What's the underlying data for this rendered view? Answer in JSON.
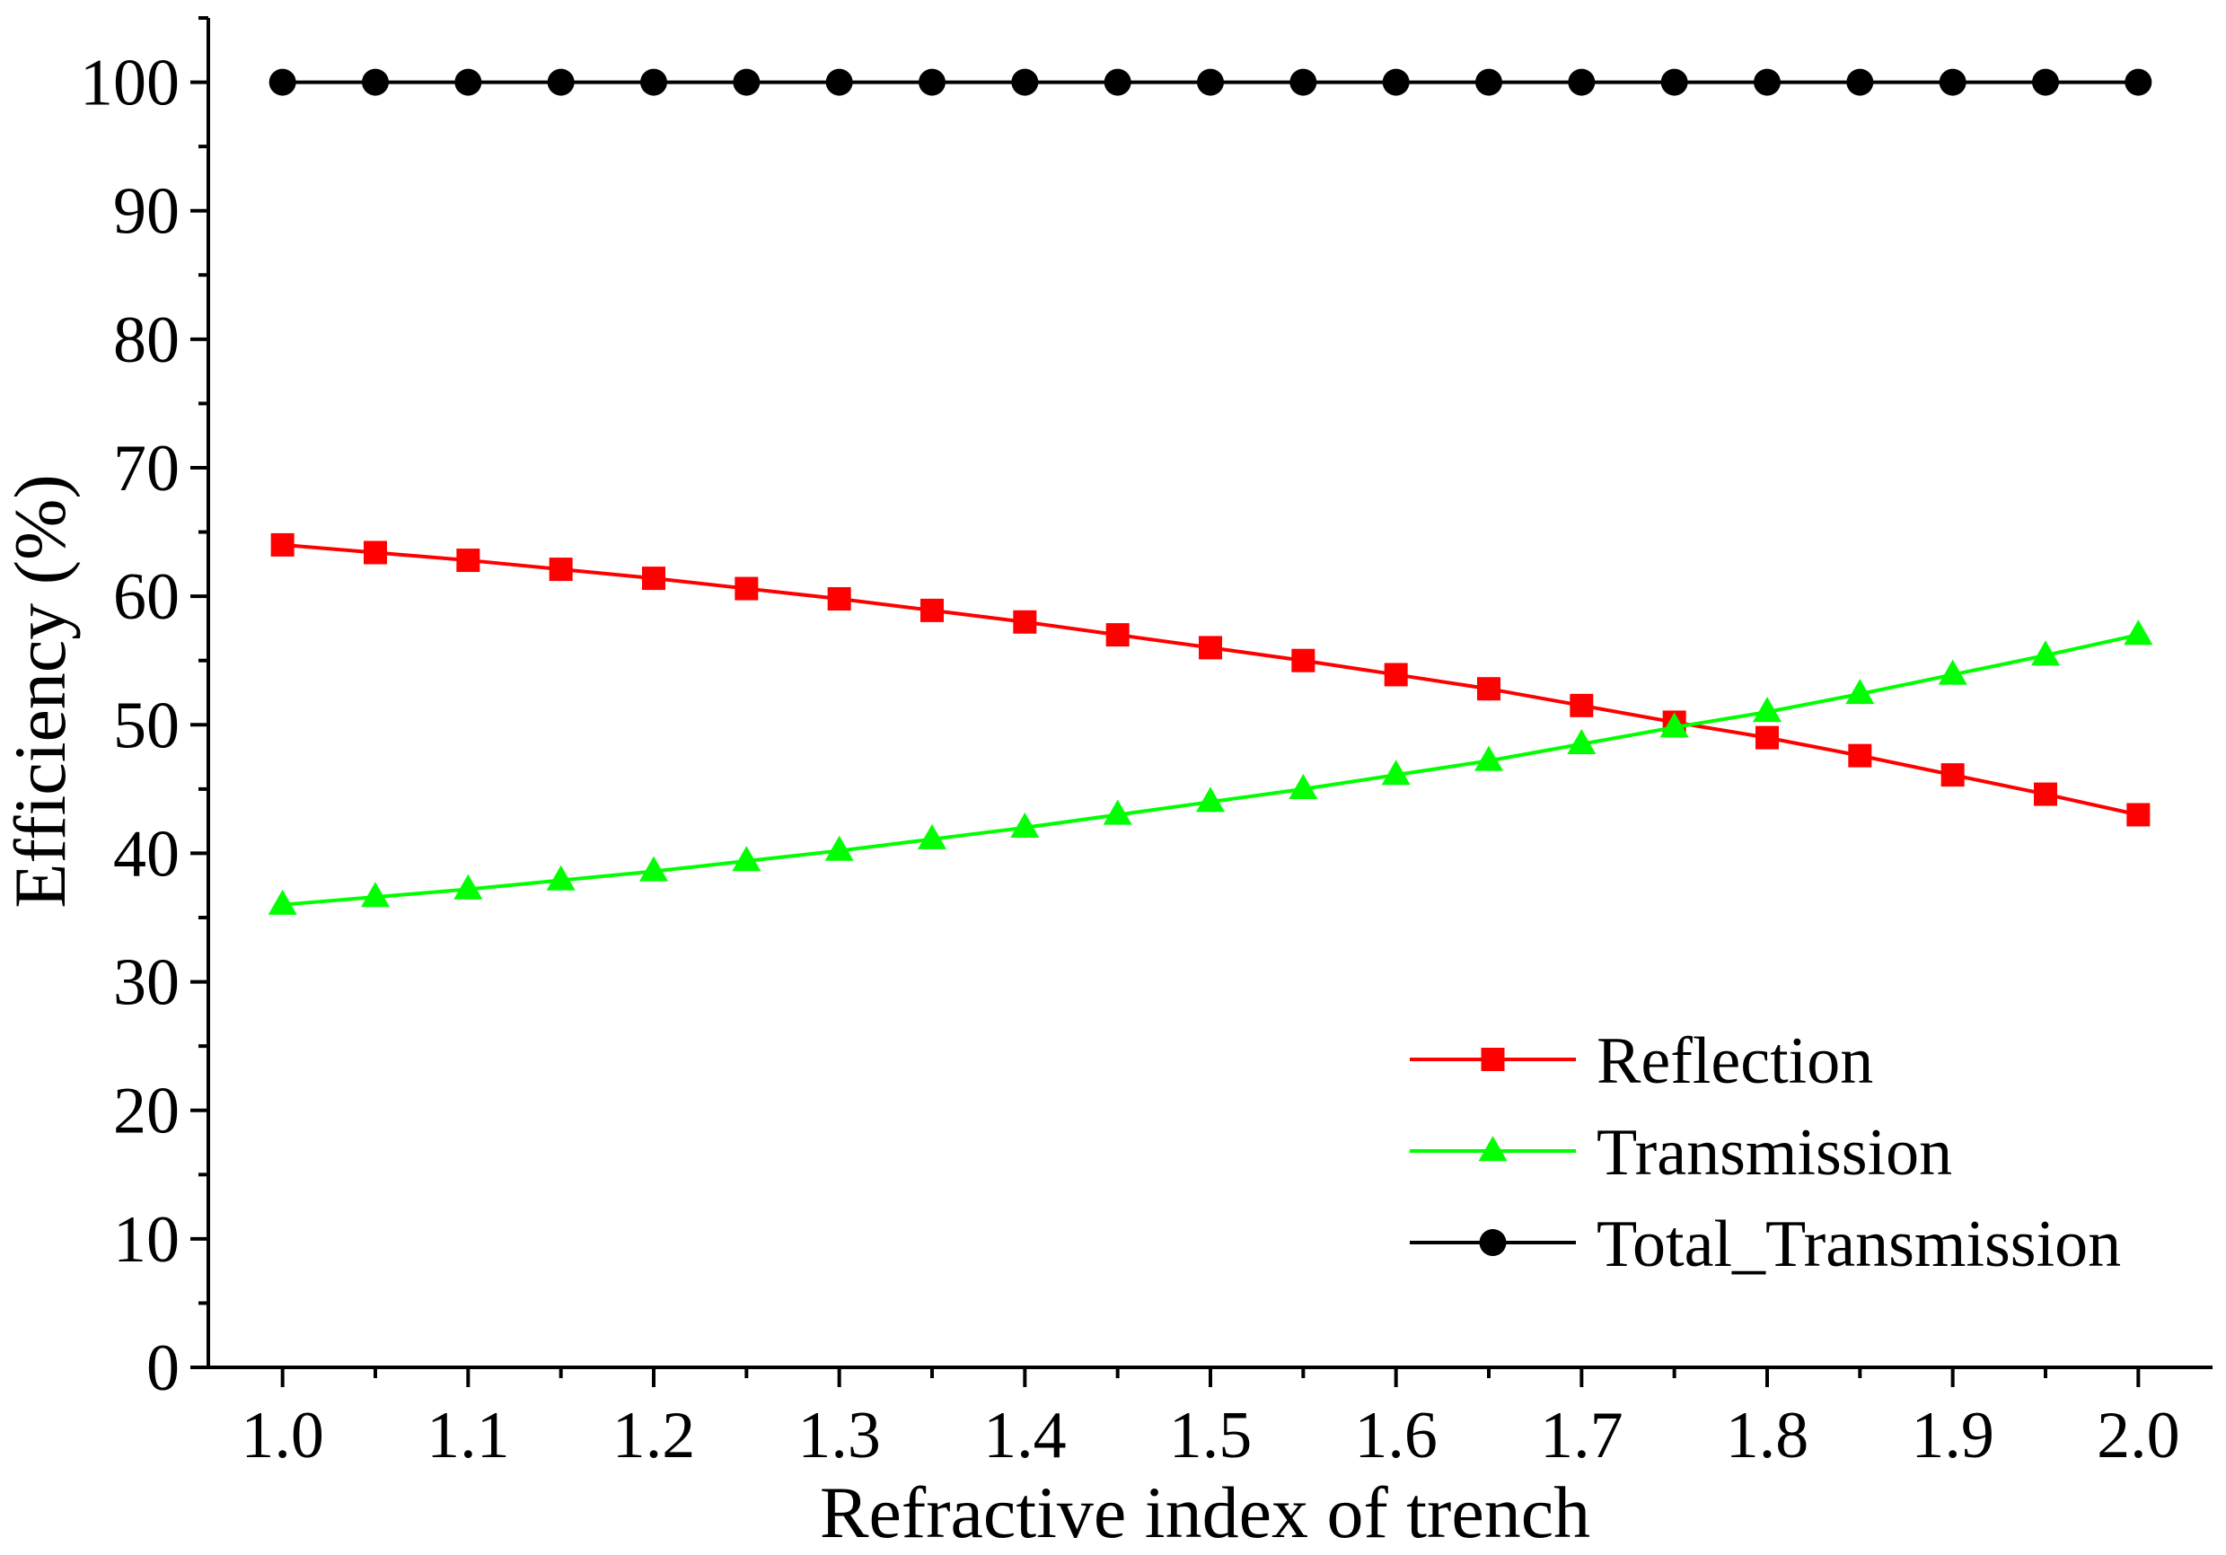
{
  "chart_data": {
    "type": "line",
    "title": "",
    "xlabel": "Refractive index of trench",
    "ylabel": "Efficiency (%)",
    "xlim": [
      0.96,
      2.04
    ],
    "ylim": [
      0,
      105
    ],
    "x_ticks": [
      1.0,
      1.1,
      1.2,
      1.3,
      1.4,
      1.5,
      1.6,
      1.7,
      1.8,
      1.9,
      2.0
    ],
    "x_tick_labels": [
      "1.0",
      "1.1",
      "1.2",
      "1.3",
      "1.4",
      "1.5",
      "1.6",
      "1.7",
      "1.8",
      "1.9",
      "2.0"
    ],
    "y_ticks": [
      0,
      10,
      20,
      30,
      40,
      50,
      60,
      70,
      80,
      90,
      100
    ],
    "y_tick_labels": [
      "0",
      "10",
      "20",
      "30",
      "40",
      "50",
      "60",
      "70",
      "80",
      "90",
      "100"
    ],
    "grid": false,
    "legend_position": "bottom-right",
    "x": [
      1.0,
      1.05,
      1.1,
      1.15,
      1.2,
      1.25,
      1.3,
      1.35,
      1.4,
      1.45,
      1.5,
      1.55,
      1.6,
      1.65,
      1.7,
      1.75,
      1.8,
      1.85,
      1.9,
      1.95,
      2.0
    ],
    "series": [
      {
        "name": "Reflection",
        "color": "#ff0000",
        "marker": "square",
        "values": [
          64.0,
          63.4,
          62.8,
          62.1,
          61.4,
          60.6,
          59.8,
          58.9,
          58.0,
          57.0,
          56.0,
          55.0,
          53.9,
          52.8,
          51.5,
          50.2,
          49.0,
          47.6,
          46.1,
          44.6,
          43.0
        ]
      },
      {
        "name": "Transmission",
        "color": "#00ff00",
        "marker": "triangle",
        "values": [
          36.0,
          36.6,
          37.2,
          37.9,
          38.6,
          39.4,
          40.2,
          41.1,
          42.0,
          43.0,
          44.0,
          45.0,
          46.1,
          47.2,
          48.5,
          49.8,
          51.0,
          52.4,
          53.9,
          55.4,
          57.0
        ]
      },
      {
        "name": "Total_Transmission",
        "color": "#000000",
        "marker": "circle",
        "values": [
          100,
          100,
          100,
          100,
          100,
          100,
          100,
          100,
          100,
          100,
          100,
          100,
          100,
          100,
          100,
          100,
          100,
          100,
          100,
          100,
          100
        ]
      }
    ]
  }
}
